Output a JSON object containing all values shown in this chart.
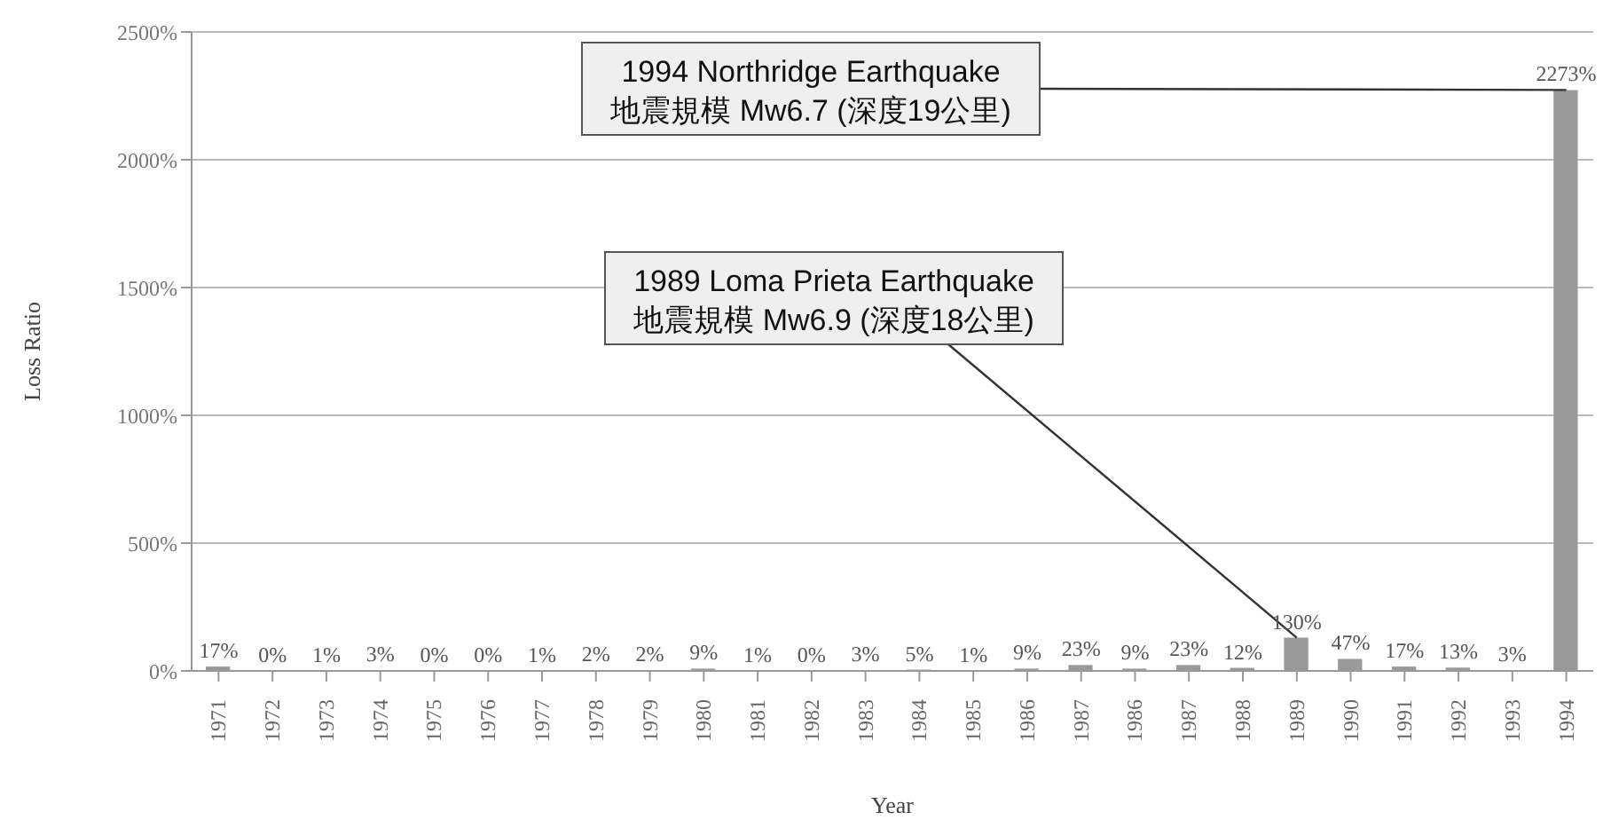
{
  "chart_data": {
    "type": "bar",
    "xlabel": "Year",
    "ylabel": "Loss Ratio",
    "categories": [
      "1971",
      "1972",
      "1973",
      "1974",
      "1975",
      "1976",
      "1977",
      "1978",
      "1979",
      "1980",
      "1981",
      "1982",
      "1983",
      "1984",
      "1985",
      "1986",
      "1987",
      "1986",
      "1987",
      "1988",
      "1989",
      "1990",
      "1991",
      "1992",
      "1993",
      "1994"
    ],
    "values": [
      17,
      0,
      1,
      3,
      0,
      0,
      1,
      2,
      2,
      9,
      1,
      0,
      3,
      5,
      1,
      9,
      23,
      9,
      23,
      12,
      130,
      47,
      17,
      13,
      3,
      2273
    ],
    "value_labels": [
      "17%",
      "0%",
      "1%",
      "3%",
      "0%",
      "0%",
      "1%",
      "2%",
      "2%",
      "9%",
      "1%",
      "0%",
      "3%",
      "5%",
      "1%",
      "9%",
      "23%",
      "9%",
      "23%",
      "12%",
      "130%",
      "47%",
      "17%",
      "13%",
      "3%",
      "2273%"
    ],
    "color": "#9a9a9a",
    "ylim": [
      0,
      2500
    ],
    "yticks": [
      {
        "value": 0,
        "label": "0%"
      },
      {
        "value": 500,
        "label": "500%"
      },
      {
        "value": 1000,
        "label": "1000%"
      },
      {
        "value": 1500,
        "label": "1500%"
      },
      {
        "value": 2000,
        "label": "2000%"
      },
      {
        "value": 2500,
        "label": "2500%"
      }
    ],
    "grid": "y",
    "annotations": [
      {
        "text": "1994 Northridge Earthquake\n地震規模 Mw6.7 (深度19公里)",
        "x": "1994",
        "y": 2273
      },
      {
        "text": "1989 Loma Prieta Earthquake\n地震規模 Mw6.9 (深度18公里)",
        "x": "1989",
        "y": 130
      }
    ]
  }
}
